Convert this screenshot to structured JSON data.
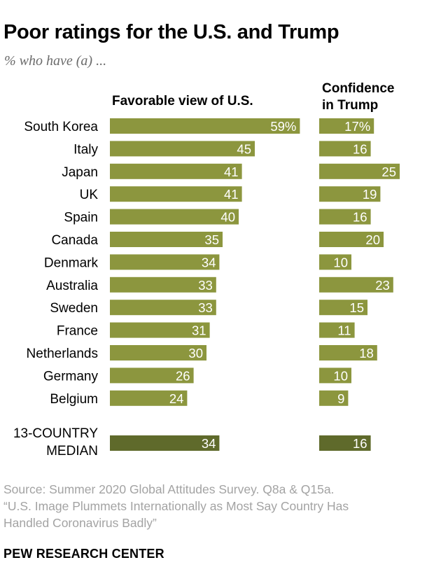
{
  "title": "Poor ratings for the U.S. and Trump",
  "subtitle": "% who have (a) ...",
  "colors": {
    "bar": "#8c963e",
    "median_bar": "#5f6a2b",
    "label": "#ffffff"
  },
  "chart_data": {
    "type": "bar",
    "orientation": "horizontal",
    "categories": [
      "South Korea",
      "Italy",
      "Japan",
      "UK",
      "Spain",
      "Canada",
      "Denmark",
      "Australia",
      "Sweden",
      "France",
      "Netherlands",
      "Germany",
      "Belgium"
    ],
    "median_label": [
      "13-COUNTRY",
      "MEDIAN"
    ],
    "series": [
      {
        "name": "Favorable view of U.S.",
        "header": [
          "Favorable view of U.S."
        ],
        "values": [
          59,
          45,
          41,
          41,
          40,
          35,
          34,
          33,
          33,
          31,
          30,
          26,
          24
        ],
        "labels": [
          "59%",
          "45",
          "41",
          "41",
          "40",
          "35",
          "34",
          "33",
          "33",
          "31",
          "30",
          "26",
          "24"
        ],
        "median": 34,
        "median_label": "34"
      },
      {
        "name": "Confidence in Trump",
        "header": [
          "Confidence",
          "in Trump"
        ],
        "values": [
          17,
          16,
          25,
          19,
          16,
          20,
          10,
          23,
          15,
          11,
          18,
          10,
          9
        ],
        "labels": [
          "17%",
          "16",
          "25",
          "19",
          "16",
          "20",
          "10",
          "23",
          "15",
          "11",
          "18",
          "10",
          "9"
        ],
        "median": 16,
        "median_label": "16"
      }
    ]
  },
  "source": {
    "line1": "Source: Summer 2020 Global Attitudes Survey. Q8a & Q15a.",
    "line2": "“U.S. Image Plummets Internationally as Most Say Country Has",
    "line3": "Handled Coronavirus Badly”"
  },
  "organization": "PEW RESEARCH CENTER"
}
